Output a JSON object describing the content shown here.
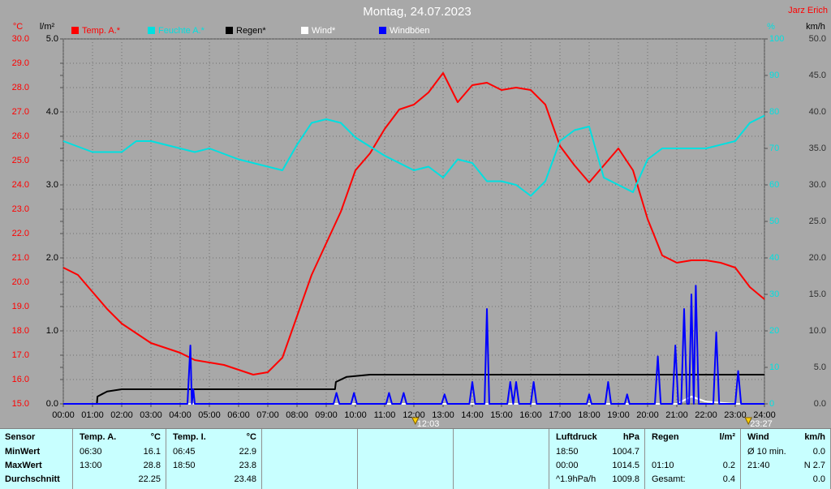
{
  "chart_data": {
    "type": "line",
    "title": "Montag, 24.07.2023",
    "author": "Jarz Erich",
    "xlim": [
      0,
      24
    ],
    "xticks": [
      {
        "value": 0,
        "label": "00:00"
      },
      {
        "value": 1,
        "label": "01:00"
      },
      {
        "value": 2,
        "label": "02:00"
      },
      {
        "value": 3,
        "label": "03:00"
      },
      {
        "value": 4,
        "label": "04:00"
      },
      {
        "value": 5,
        "label": "05:00"
      },
      {
        "value": 6,
        "label": "06:00"
      },
      {
        "value": 7,
        "label": "07:00"
      },
      {
        "value": 8,
        "label": "08:00"
      },
      {
        "value": 9,
        "label": "09:00"
      },
      {
        "value": 10,
        "label": "10:00"
      },
      {
        "value": 11,
        "label": "11:00"
      },
      {
        "value": 12,
        "label": "12:00"
      },
      {
        "value": 13,
        "label": "13:00"
      },
      {
        "value": 14,
        "label": "14:00"
      },
      {
        "value": 15,
        "label": "15:00"
      },
      {
        "value": 16,
        "label": "16:00"
      },
      {
        "value": 17,
        "label": "17:00"
      },
      {
        "value": 18,
        "label": "18:00"
      },
      {
        "value": 19,
        "label": "19:00"
      },
      {
        "value": 20,
        "label": "20:00"
      },
      {
        "value": 21,
        "label": "21:00"
      },
      {
        "value": 22,
        "label": "22:00"
      },
      {
        "value": 23,
        "label": "23:00"
      },
      {
        "value": 24,
        "label": "24:00"
      }
    ],
    "y_unit": "°C",
    "ylim": [
      15,
      30
    ],
    "yticks": [
      {
        "value": 15,
        "label": "15.0"
      },
      {
        "value": 16,
        "label": "16.0"
      },
      {
        "value": 17,
        "label": "17.0"
      },
      {
        "value": 18,
        "label": "18.0"
      },
      {
        "value": 19,
        "label": "19.0"
      },
      {
        "value": 20,
        "label": "20.0"
      },
      {
        "value": 21,
        "label": "21.0"
      },
      {
        "value": 22,
        "label": "22.0"
      },
      {
        "value": 23,
        "label": "23.0"
      },
      {
        "value": 24,
        "label": "24.0"
      },
      {
        "value": 25,
        "label": "25.0"
      },
      {
        "value": 26,
        "label": "26.0"
      },
      {
        "value": 27,
        "label": "27.0"
      },
      {
        "value": 28,
        "label": "28.0"
      },
      {
        "value": 29,
        "label": "29.0"
      },
      {
        "value": 30,
        "label": "30.0"
      }
    ],
    "y2_unit": "l/m²",
    "y2lim": [
      0,
      5
    ],
    "y2ticks": [
      {
        "value": 0,
        "label": "0.0"
      },
      {
        "value": 1,
        "label": "1.0"
      },
      {
        "value": 2,
        "label": "2.0"
      },
      {
        "value": 3,
        "label": "3.0"
      },
      {
        "value": 4,
        "label": "4.0"
      },
      {
        "value": 5,
        "label": "5.0"
      }
    ],
    "y3_unit": "%",
    "y3lim": [
      0,
      100
    ],
    "y3ticks": [
      0,
      10,
      20,
      30,
      40,
      50,
      60,
      70,
      80,
      90,
      100
    ],
    "y4_unit": "km/h",
    "y4lim": [
      0,
      50
    ],
    "y4ticks": [
      {
        "value": 0,
        "label": "0.0"
      },
      {
        "value": 5,
        "label": "5.0"
      },
      {
        "value": 10,
        "label": "10.0"
      },
      {
        "value": 15,
        "label": "15.0"
      },
      {
        "value": 20,
        "label": "20.0"
      },
      {
        "value": 25,
        "label": "25.0"
      },
      {
        "value": 30,
        "label": "30.0"
      },
      {
        "value": 35,
        "label": "35.0"
      },
      {
        "value": 40,
        "label": "40.0"
      },
      {
        "value": 45,
        "label": "45.0"
      },
      {
        "value": 50,
        "label": "50.0"
      }
    ],
    "grid": true,
    "annotations": [
      {
        "x": 12.05,
        "text": "12:03"
      },
      {
        "x": 23.45,
        "text": "23:27"
      }
    ],
    "series": [
      {
        "name": "Temp. A.*",
        "color": "#ff0000",
        "axis": "y",
        "x": [
          0,
          0.5,
          1,
          1.5,
          2,
          2.5,
          3,
          3.5,
          4,
          4.5,
          5,
          5.5,
          6,
          6.5,
          7,
          7.5,
          8,
          8.5,
          9,
          9.5,
          10,
          10.5,
          11,
          11.5,
          12,
          12.5,
          13,
          13.5,
          14,
          14.5,
          15,
          15.5,
          16,
          16.5,
          17,
          17.5,
          18,
          18.5,
          19,
          19.5,
          20,
          20.5,
          21,
          21.5,
          22,
          22.5,
          23,
          23.5,
          24
        ],
        "values": [
          20.6,
          20.3,
          19.6,
          18.9,
          18.3,
          17.9,
          17.5,
          17.3,
          17.1,
          16.8,
          16.7,
          16.6,
          16.4,
          16.2,
          16.3,
          16.9,
          18.6,
          20.3,
          21.6,
          22.9,
          24.6,
          25.3,
          26.3,
          27.1,
          27.3,
          27.8,
          28.6,
          27.4,
          28.1,
          28.2,
          27.9,
          28.0,
          27.9,
          27.3,
          25.6,
          24.8,
          24.1,
          24.8,
          25.5,
          24.6,
          22.6,
          21.1,
          20.8,
          20.9,
          20.9,
          20.8,
          20.6,
          19.8,
          19.3
        ]
      },
      {
        "name": "Feuchte A.*",
        "color": "#00e0e0",
        "axis": "y3",
        "x": [
          0,
          1,
          2,
          2.5,
          3,
          4,
          4.5,
          5,
          6,
          7,
          7.5,
          8,
          8.5,
          9,
          9.5,
          10,
          11,
          12,
          12.5,
          13,
          13.5,
          14,
          14.5,
          15,
          15.5,
          16,
          16.5,
          17,
          17.5,
          18,
          18.5,
          19,
          19.5,
          20,
          20.5,
          21,
          22,
          23,
          23.5,
          24
        ],
        "values": [
          72,
          69,
          69,
          72,
          72,
          70,
          69,
          70,
          67,
          65,
          64,
          71,
          77,
          78,
          77,
          73,
          68,
          64,
          65,
          62,
          67,
          66,
          61,
          61,
          60,
          57,
          61,
          72,
          75,
          76,
          62,
          60,
          58,
          67,
          70,
          70,
          70,
          72,
          77,
          79
        ]
      },
      {
        "name": "Regen*",
        "color": "#000000",
        "axis": "y2",
        "x": [
          0,
          1.15,
          1.17,
          1.5,
          2,
          9.3,
          9.33,
          9.7,
          10.5,
          24
        ],
        "values": [
          0,
          0,
          0.1,
          0.17,
          0.2,
          0.2,
          0.3,
          0.37,
          0.4,
          0.4
        ]
      },
      {
        "name": "Wind*",
        "color": "#ffffff",
        "axis": "y4",
        "x": [
          0,
          21,
          21.5,
          22,
          23,
          24
        ],
        "values": [
          0,
          0,
          1,
          0.3,
          0,
          0
        ]
      },
      {
        "name": "Windböen",
        "color": "#0000ff",
        "text_color": "#ffffff",
        "axis": "y4",
        "x": [
          0,
          4.25,
          4.35,
          4.4,
          4.45,
          4.5,
          9.25,
          9.35,
          9.45,
          9.85,
          9.95,
          10.05,
          11.05,
          11.15,
          11.25,
          11.55,
          11.65,
          11.75,
          12.95,
          13.05,
          13.15,
          13.9,
          14.0,
          14.1,
          14.42,
          14.5,
          14.58,
          15.2,
          15.3,
          15.4,
          15.5,
          15.6,
          16.0,
          16.1,
          16.2,
          17.92,
          18.0,
          18.08,
          18.55,
          18.65,
          18.75,
          19.22,
          19.3,
          19.38,
          20.25,
          20.35,
          20.45,
          20.85,
          20.95,
          21.05,
          21.15,
          21.25,
          21.35,
          21.42,
          21.5,
          21.58,
          21.65,
          21.75,
          22.25,
          22.35,
          22.45,
          23.0,
          23.1,
          23.2,
          24
        ],
        "values": [
          0,
          0,
          8.0,
          0,
          2.0,
          0,
          0,
          1.5,
          0,
          0,
          1.5,
          0,
          0,
          1.5,
          0,
          0,
          1.5,
          0,
          0,
          1.3,
          0,
          0,
          3.0,
          0,
          0,
          13.0,
          0,
          0,
          3.0,
          0,
          3.0,
          0,
          0,
          3.0,
          0,
          0,
          1.3,
          0,
          0,
          3.0,
          0,
          0,
          1.3,
          0,
          0,
          6.5,
          0,
          0,
          8.0,
          0,
          0,
          13.0,
          0,
          0,
          15.0,
          0,
          16.2,
          0,
          0,
          9.8,
          0,
          0,
          4.5,
          0,
          0
        ]
      }
    ]
  },
  "table": {
    "blocks": [
      {
        "header": [
          "Sensor"
        ],
        "rows": [
          [
            "MinWert"
          ],
          [
            "MaxWert"
          ],
          [
            "Durchschnitt"
          ]
        ]
      },
      {
        "header": [
          "Temp. A.",
          "°C"
        ],
        "rows": [
          [
            "06:30",
            "16.1"
          ],
          [
            "13:00",
            "28.8"
          ],
          [
            null,
            "22.25"
          ]
        ]
      },
      {
        "header": [
          "Temp. I.",
          "°C"
        ],
        "rows": [
          [
            "06:45",
            "22.9"
          ],
          [
            "18:50",
            "23.8"
          ],
          [
            null,
            "23.48"
          ]
        ]
      },
      {
        "header": [
          "Luftdruck",
          "hPa"
        ],
        "rows": [
          [
            "18:50",
            "1004.7"
          ],
          [
            "00:00",
            "1014.5"
          ],
          [
            "^1.9hPa/h",
            "1009.8"
          ]
        ]
      },
      {
        "header": [
          "Regen",
          "l/m²"
        ],
        "rows": [
          [
            null,
            null
          ],
          [
            "01:10",
            "0.2"
          ],
          [
            "Gesamt:",
            "0.4"
          ]
        ]
      },
      {
        "header": [
          "Wind",
          "km/h"
        ],
        "rows": [
          [
            "Ø 10 min.",
            "0.0"
          ],
          [
            "21:40",
            "N 2.7"
          ],
          [
            null,
            "0.0"
          ]
        ]
      }
    ]
  }
}
